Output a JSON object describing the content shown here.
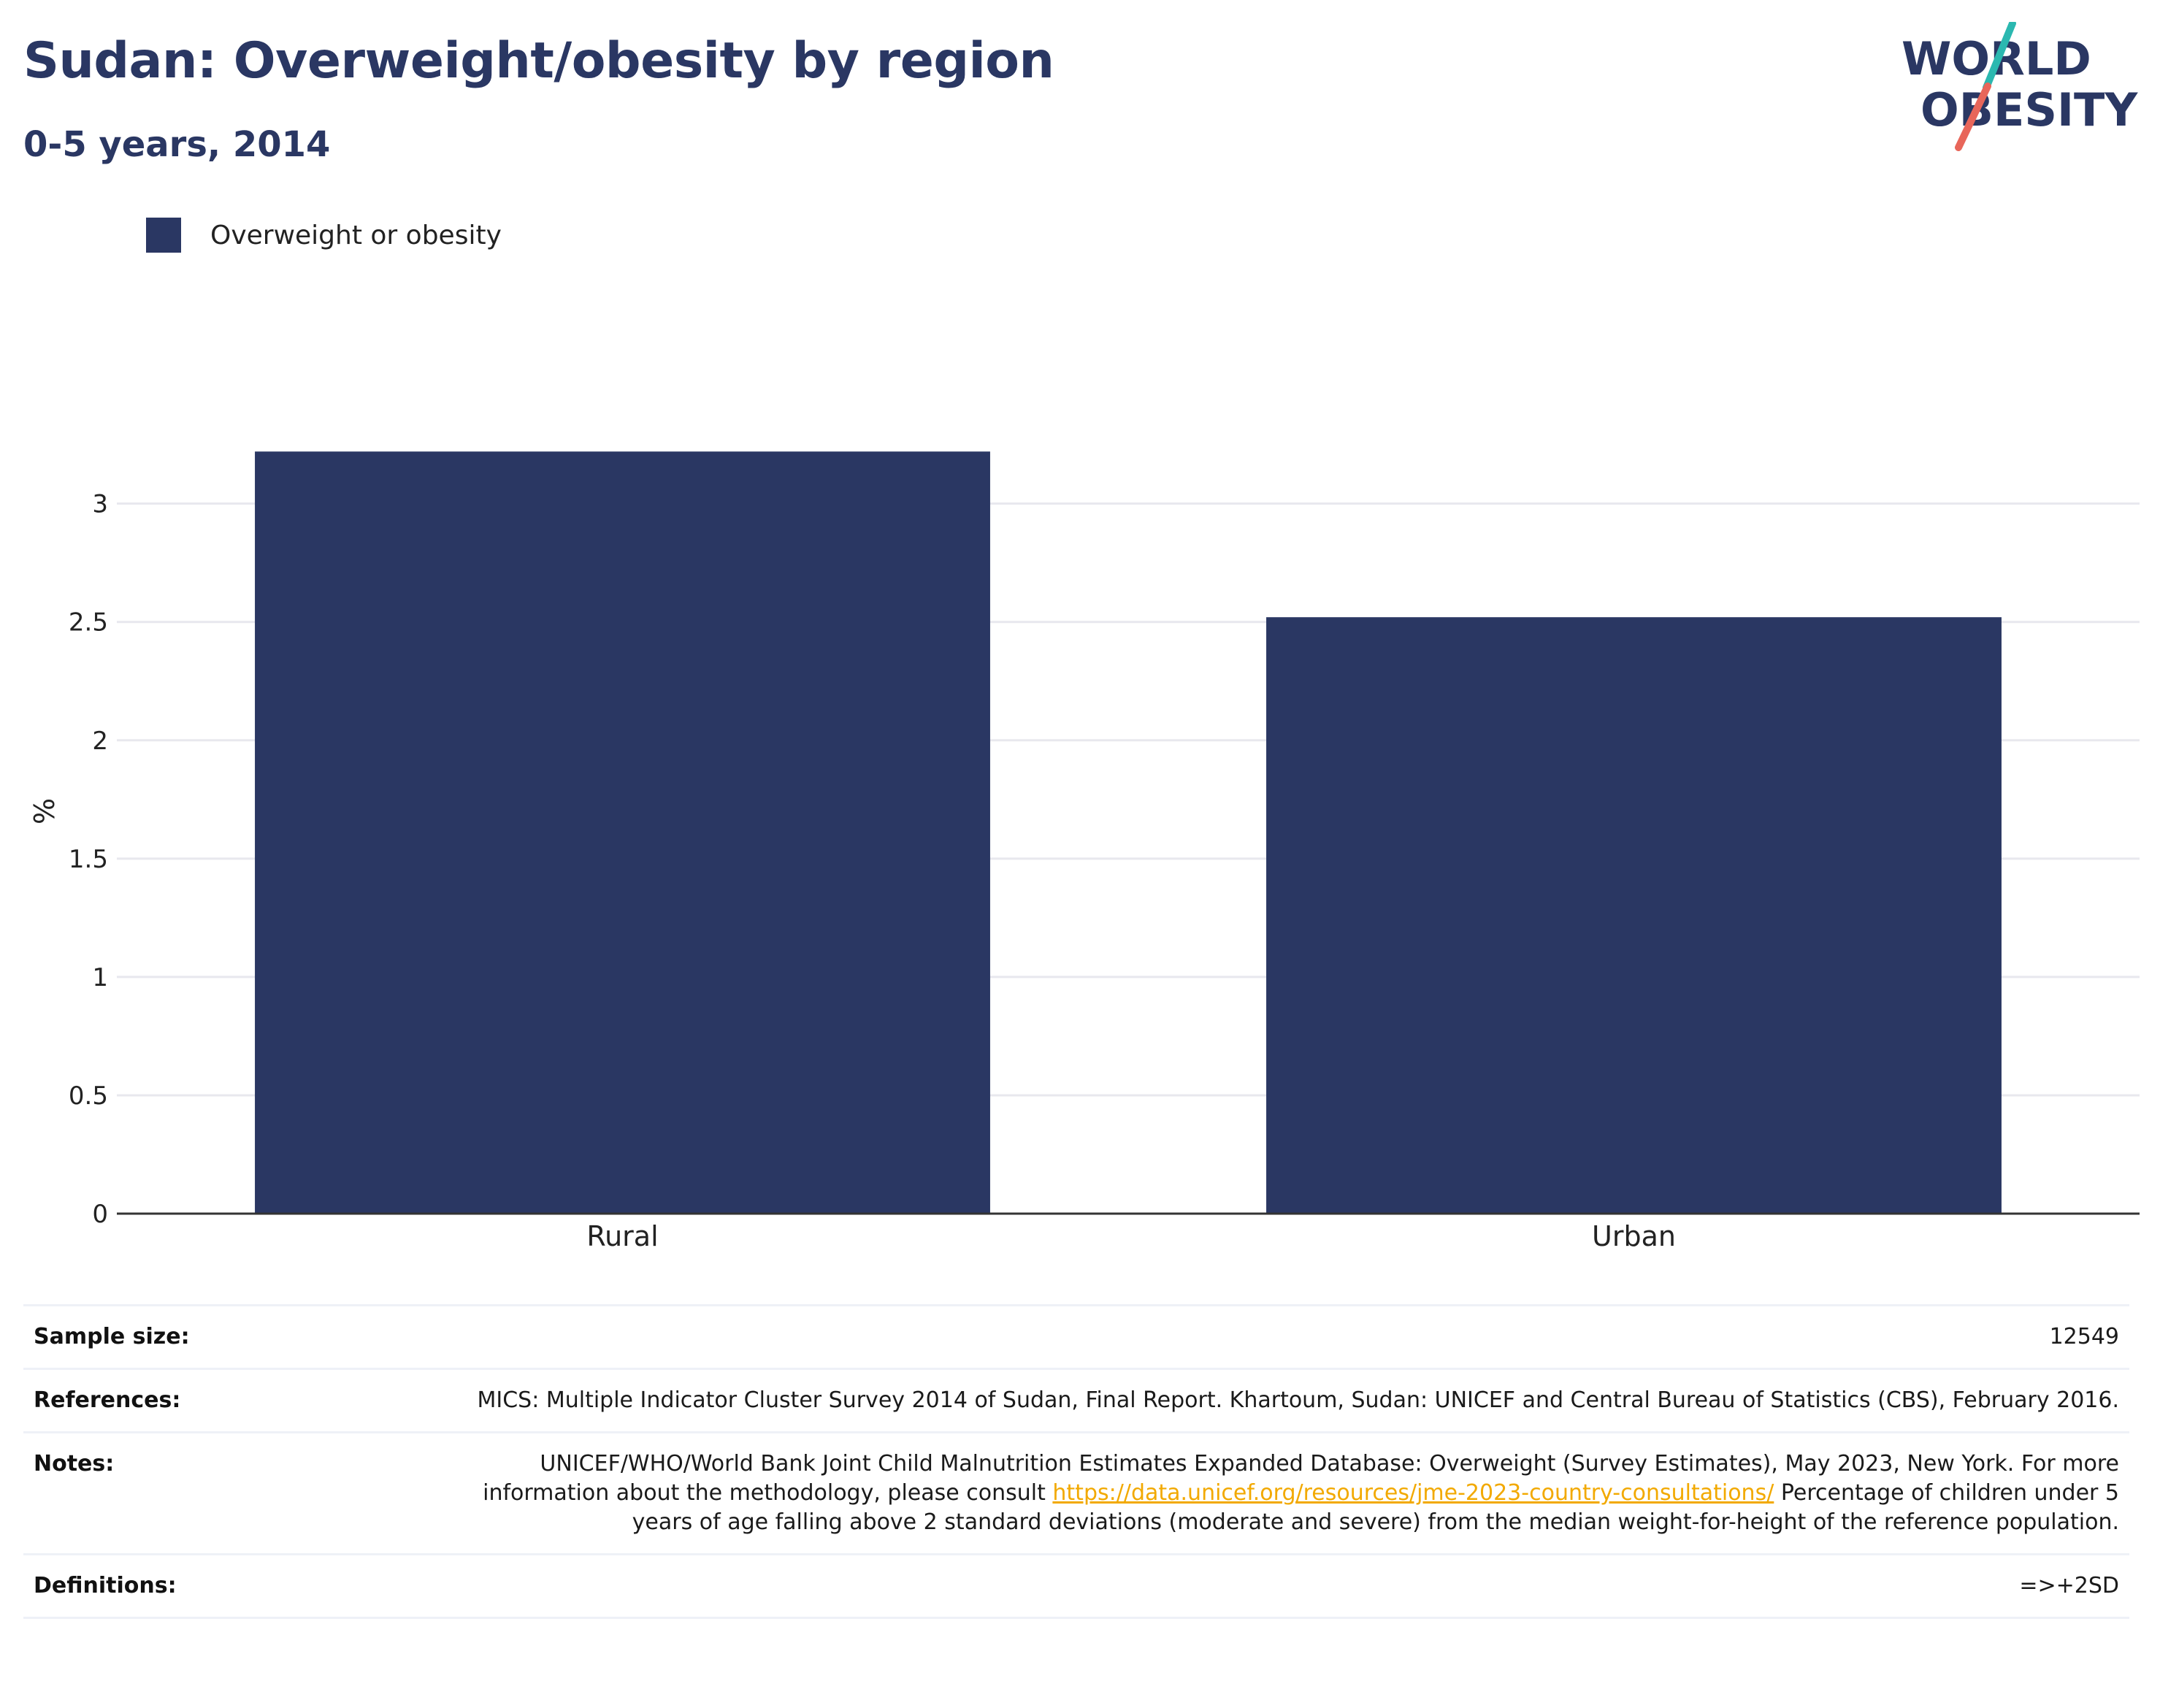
{
  "title": "Sudan: Overweight/obesity by region",
  "subtitle": "0-5 years, 2014",
  "logo": {
    "line1": "WORLD",
    "line2": "OBESITY",
    "colors": {
      "text": "#2a3763",
      "slash_top": "#2bb8b0",
      "slash_bottom": "#e8665a"
    }
  },
  "colors": {
    "bar": "#2a3763",
    "grid": "#e8e8ee",
    "axis": "#333333"
  },
  "chart_data": {
    "type": "bar",
    "title": "Sudan: Overweight/obesity by region",
    "subtitle": "0-5 years, 2014",
    "categories": [
      "Rural",
      "Urban"
    ],
    "series": [
      {
        "name": "Overweight or obesity",
        "values": [
          3.22,
          2.52
        ]
      }
    ],
    "xlabel": "",
    "ylabel": "%",
    "ylim": [
      0,
      3.4
    ],
    "yticks": [
      0,
      0.5,
      1,
      1.5,
      2,
      2.5,
      3
    ],
    "ytick_labels": [
      "0",
      "0.5",
      "1",
      "1.5",
      "2",
      "2.5",
      "3"
    ],
    "grid": true,
    "legend": "top-left"
  },
  "info": {
    "sample_size_label": "Sample size:",
    "sample_size_value": "12549",
    "references_label": "References:",
    "references_value": "MICS: Multiple Indicator Cluster Survey 2014 of Sudan, Final Report. Khartoum, Sudan: UNICEF and Central Bureau of Statistics (CBS), February 2016.",
    "notes_label": "Notes:",
    "notes_text1": "UNICEF/WHO/World Bank Joint Child Malnutrition Estimates Expanded Database: Overweight (Survey Estimates), May 2023, New York. For more information about the methodology, please consult ",
    "notes_link": "https://data.unicef.org/resources/jme-2023-country-consultations/",
    "notes_text2": " Percentage of children under 5 years of age falling above 2 standard deviations (moderate and severe) from the median weight-for-height of the reference population.",
    "definitions_label": "Definitions:",
    "definitions_value": "=>+2SD"
  }
}
